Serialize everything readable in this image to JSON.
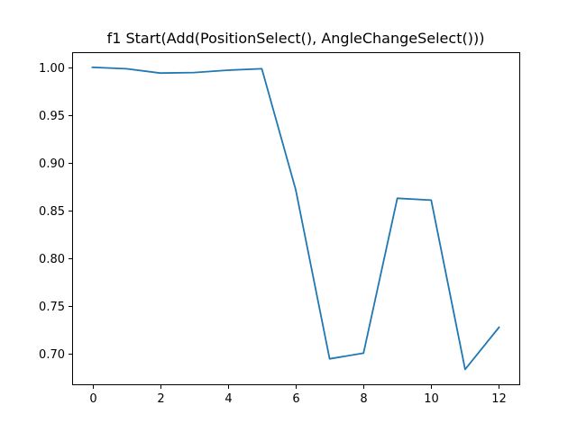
{
  "chart_data": {
    "type": "line",
    "title": "f1 Start(Add(PositionSelect(), AngleChangeSelect()))",
    "xlabel": "",
    "ylabel": "",
    "x": [
      0,
      1,
      2,
      3,
      4,
      5,
      6,
      7,
      8,
      9,
      10,
      11,
      12
    ],
    "series": [
      {
        "values": [
          1.0,
          0.9985,
          0.994,
          0.9945,
          0.997,
          0.9985,
          0.872,
          0.695,
          0.701,
          0.863,
          0.861,
          0.684,
          0.728
        ],
        "color": "#1f77b4"
      }
    ],
    "xlim": [
      -0.6,
      12.6
    ],
    "ylim": [
      0.6684,
      1.0158
    ],
    "xticks": [
      0,
      2,
      4,
      6,
      8,
      10,
      12
    ],
    "yticks": [
      0.7,
      0.75,
      0.8,
      0.85,
      0.9,
      0.95,
      1.0
    ],
    "ytick_labels": [
      "0.70",
      "0.75",
      "0.80",
      "0.85",
      "0.90",
      "0.95",
      "1.00"
    ],
    "xtick_labels": [
      "0",
      "2",
      "4",
      "6",
      "8",
      "10",
      "12"
    ],
    "grid": false
  }
}
